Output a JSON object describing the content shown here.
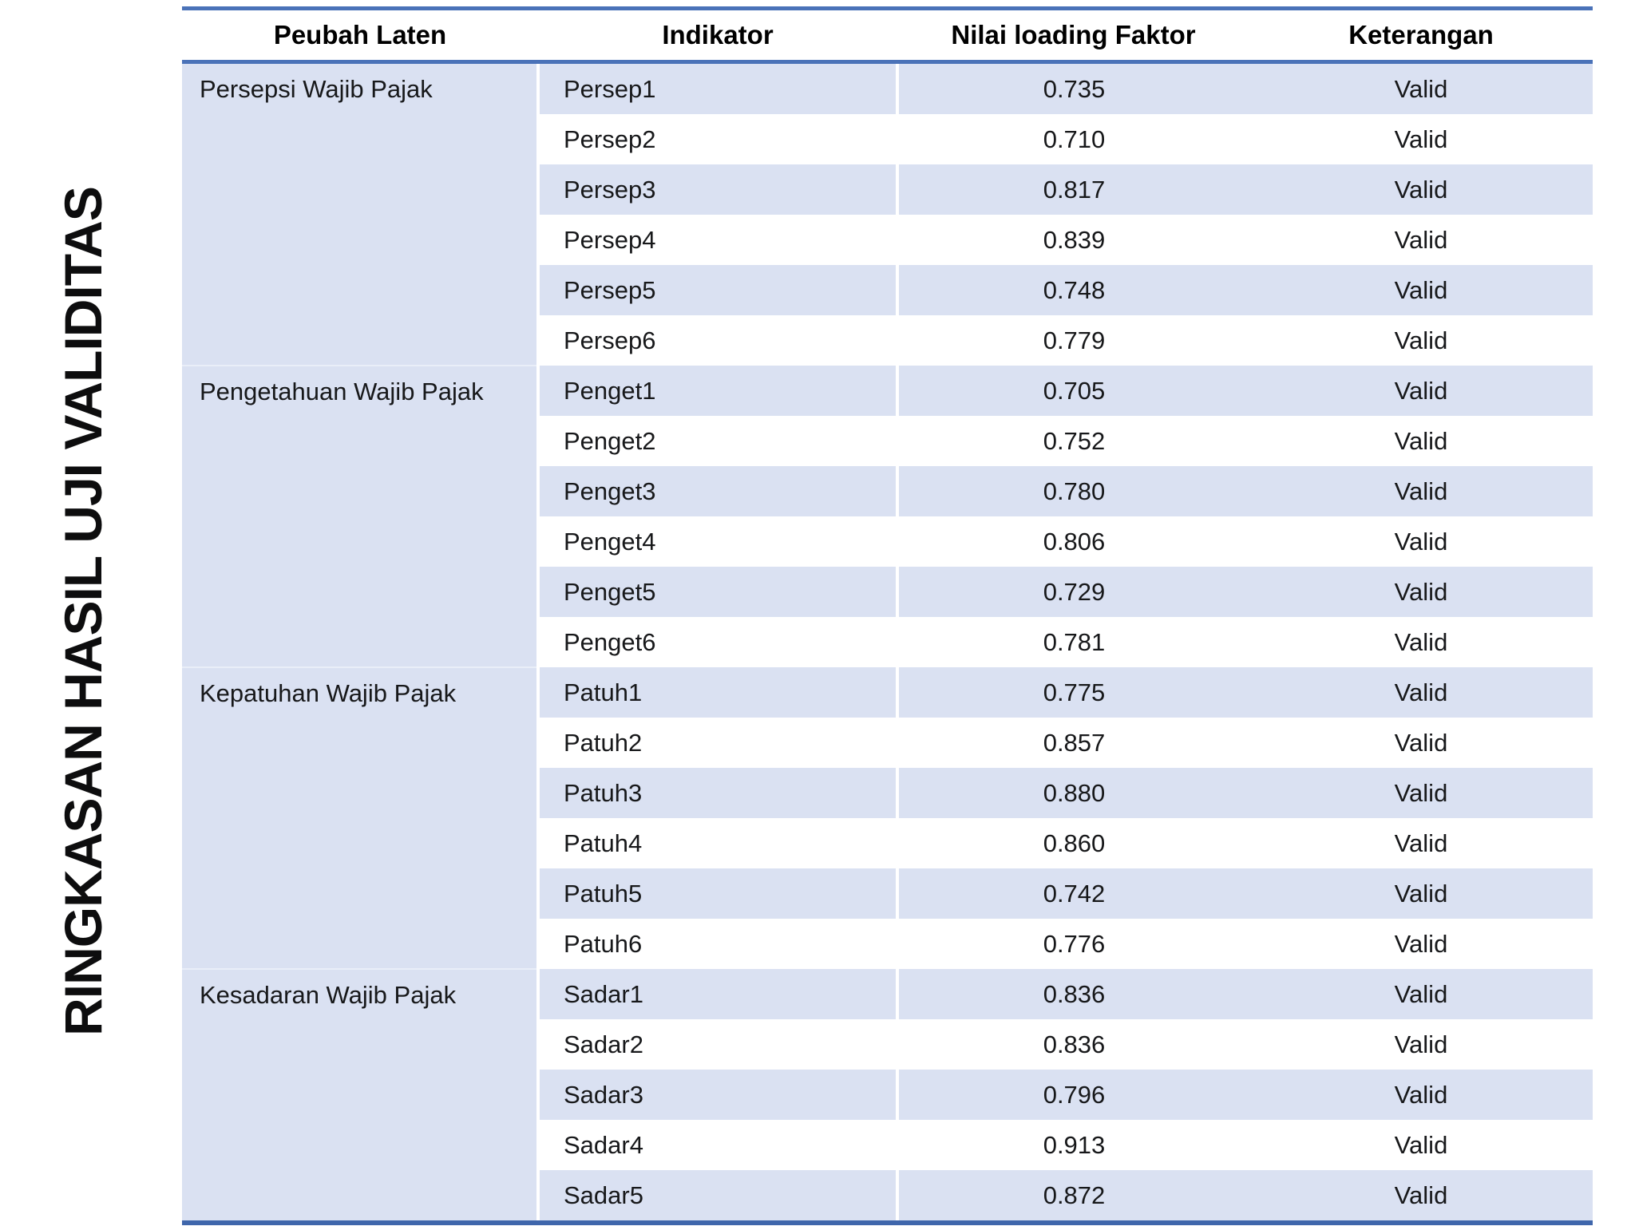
{
  "title": "RINGKASAN HASIL UJI VALIDITAS",
  "table": {
    "columns": [
      "Peubah Laten",
      "Indikator",
      "Nilai loading Faktor",
      "Keterangan"
    ],
    "groups": [
      {
        "label": "Persepsi Wajib Pajak",
        "rows": [
          [
            "Persep1",
            "0.735",
            "Valid"
          ],
          [
            "Persep2",
            "0.710",
            "Valid"
          ],
          [
            "Persep3",
            "0.817",
            "Valid"
          ],
          [
            "Persep4",
            "0.839",
            "Valid"
          ],
          [
            "Persep5",
            "0.748",
            "Valid"
          ],
          [
            "Persep6",
            "0.779",
            "Valid"
          ]
        ]
      },
      {
        "label": "Pengetahuan Wajib Pajak",
        "rows": [
          [
            "Penget1",
            "0.705",
            "Valid"
          ],
          [
            "Penget2",
            "0.752",
            "Valid"
          ],
          [
            "Penget3",
            "0.780",
            "Valid"
          ],
          [
            "Penget4",
            "0.806",
            "Valid"
          ],
          [
            "Penget5",
            "0.729",
            "Valid"
          ],
          [
            "Penget6",
            "0.781",
            "Valid"
          ]
        ]
      },
      {
        "label": "Kepatuhan Wajib Pajak",
        "rows": [
          [
            "Patuh1",
            "0.775",
            "Valid"
          ],
          [
            "Patuh2",
            "0.857",
            "Valid"
          ],
          [
            "Patuh3",
            "0.880",
            "Valid"
          ],
          [
            "Patuh4",
            "0.860",
            "Valid"
          ],
          [
            "Patuh5",
            "0.742",
            "Valid"
          ],
          [
            "Patuh6",
            "0.776",
            "Valid"
          ]
        ]
      },
      {
        "label": "Kesadaran Wajib Pajak",
        "rows": [
          [
            "Sadar1",
            "0.836",
            "Valid"
          ],
          [
            "Sadar2",
            "0.836",
            "Valid"
          ],
          [
            "Sadar3",
            "0.796",
            "Valid"
          ],
          [
            "Sadar4",
            "0.913",
            "Valid"
          ],
          [
            "Sadar5",
            "0.872",
            "Valid"
          ]
        ]
      }
    ]
  },
  "chart_data": {
    "type": "table",
    "title": "RINGKASAN HASIL UJI VALIDITAS",
    "columns": [
      "Peubah Laten",
      "Indikator",
      "Nilai loading Faktor",
      "Keterangan"
    ],
    "rows": [
      [
        "Persepsi Wajib Pajak",
        "Persep1",
        0.735,
        "Valid"
      ],
      [
        "Persepsi Wajib Pajak",
        "Persep2",
        0.71,
        "Valid"
      ],
      [
        "Persepsi Wajib Pajak",
        "Persep3",
        0.817,
        "Valid"
      ],
      [
        "Persepsi Wajib Pajak",
        "Persep4",
        0.839,
        "Valid"
      ],
      [
        "Persepsi Wajib Pajak",
        "Persep5",
        0.748,
        "Valid"
      ],
      [
        "Persepsi Wajib Pajak",
        "Persep6",
        0.779,
        "Valid"
      ],
      [
        "Pengetahuan Wajib Pajak",
        "Penget1",
        0.705,
        "Valid"
      ],
      [
        "Pengetahuan Wajib Pajak",
        "Penget2",
        0.752,
        "Valid"
      ],
      [
        "Pengetahuan Wajib Pajak",
        "Penget3",
        0.78,
        "Valid"
      ],
      [
        "Pengetahuan Wajib Pajak",
        "Penget4",
        0.806,
        "Valid"
      ],
      [
        "Pengetahuan Wajib Pajak",
        "Penget5",
        0.729,
        "Valid"
      ],
      [
        "Pengetahuan Wajib Pajak",
        "Penget6",
        0.781,
        "Valid"
      ],
      [
        "Kepatuhan Wajib Pajak",
        "Patuh1",
        0.775,
        "Valid"
      ],
      [
        "Kepatuhan Wajib Pajak",
        "Patuh2",
        0.857,
        "Valid"
      ],
      [
        "Kepatuhan Wajib Pajak",
        "Patuh3",
        0.88,
        "Valid"
      ],
      [
        "Kepatuhan Wajib Pajak",
        "Patuh4",
        0.86,
        "Valid"
      ],
      [
        "Kepatuhan Wajib Pajak",
        "Patuh5",
        0.742,
        "Valid"
      ],
      [
        "Kepatuhan Wajib Pajak",
        "Patuh6",
        0.776,
        "Valid"
      ],
      [
        "Kesadaran Wajib Pajak",
        "Sadar1",
        0.836,
        "Valid"
      ],
      [
        "Kesadaran Wajib Pajak",
        "Sadar2",
        0.836,
        "Valid"
      ],
      [
        "Kesadaran Wajib Pajak",
        "Sadar3",
        0.796,
        "Valid"
      ],
      [
        "Kesadaran Wajib Pajak",
        "Sadar4",
        0.913,
        "Valid"
      ],
      [
        "Kesadaran Wajib Pajak",
        "Sadar5",
        0.872,
        "Valid"
      ]
    ]
  },
  "colors": {
    "stripe": "#dae1f2",
    "group_column_fill": "#dae1f2",
    "border_blue": "#4a72b8",
    "border_bottom_blue": "#3f66ab",
    "text": "#17181a",
    "title_text": "#0d0d0e"
  }
}
